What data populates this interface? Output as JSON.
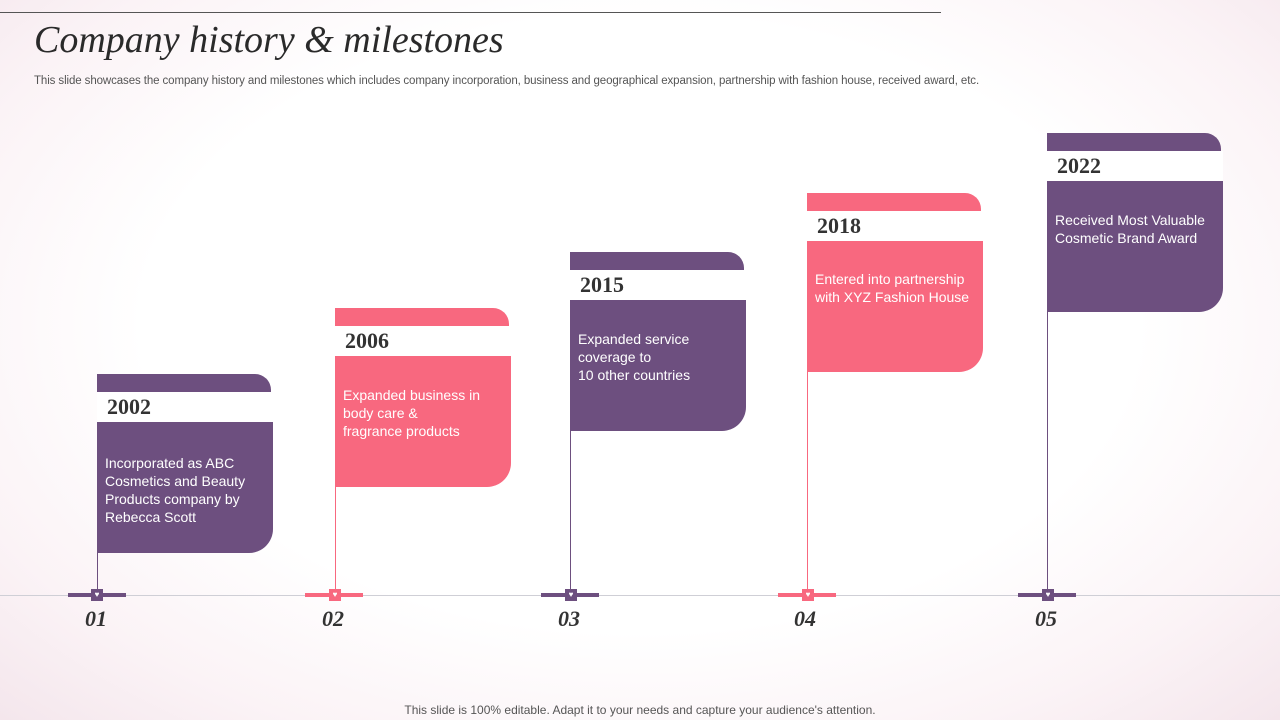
{
  "header": {
    "title": "Company history & milestones",
    "subtitle": "This slide showcases the company history and milestones which includes company incorporation, business and geographical expansion, partnership with fashion house, received award, etc."
  },
  "milestones": [
    {
      "number": "01",
      "year": "2002",
      "text": "Incorporated as ABC\nCosmetics and Beauty\nProducts company by\nRebecca Scott",
      "color": "#6d4f7f"
    },
    {
      "number": "02",
      "year": "2006",
      "text": "Expanded business in\nbody care &\nfragrance products",
      "color": "#f8687f"
    },
    {
      "number": "03",
      "year": "2015",
      "text": "Expanded service\ncoverage to\n10 other countries",
      "color": "#6d4f7f"
    },
    {
      "number": "04",
      "year": "2018",
      "text": "Entered into partnership\nwith XYZ  Fashion House",
      "color": "#f8687f"
    },
    {
      "number": "05",
      "year": "2022",
      "text": "Received Most Valuable\nCosmetic Brand Award",
      "color": "#6d4f7f"
    }
  ],
  "icons": {
    "marker": "heart-icon"
  },
  "footer": {
    "text": "This slide is 100% editable. Adapt it to your needs and capture your audience's attention."
  }
}
